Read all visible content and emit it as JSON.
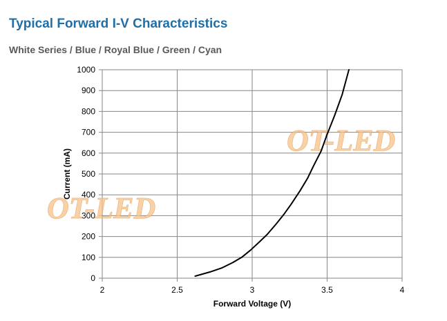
{
  "title": "Typical Forward I-V Characteristics",
  "subtitle": "White Series / Blue / Royal Blue / Green / Cyan",
  "watermark": "OT-LED",
  "chart_data": {
    "type": "line",
    "title": "Typical Forward I-V Characteristics",
    "subtitle": "White Series / Blue / Royal Blue / Green / Cyan",
    "xlabel": "Forward Voltage (V)",
    "ylabel": "Current (mA)",
    "xlim": [
      2,
      4
    ],
    "ylim": [
      0,
      1000
    ],
    "xticks": [
      2,
      2.5,
      3,
      3.5,
      4
    ],
    "yticks": [
      0,
      100,
      200,
      300,
      400,
      500,
      600,
      700,
      800,
      900,
      1000
    ],
    "grid": true,
    "legend": "none",
    "line_color": "#000000",
    "series": [
      {
        "x": [
          2.62,
          2.72,
          2.8,
          2.87,
          2.93,
          2.99,
          3.05,
          3.1,
          3.16,
          3.21,
          3.26,
          3.32,
          3.37,
          3.41,
          3.46,
          3.5,
          3.55,
          3.6,
          3.645
        ],
        "y": [
          10,
          30,
          50,
          75,
          100,
          135,
          175,
          210,
          260,
          305,
          355,
          420,
          480,
          540,
          610,
          690,
          780,
          880,
          1000
        ]
      }
    ]
  }
}
